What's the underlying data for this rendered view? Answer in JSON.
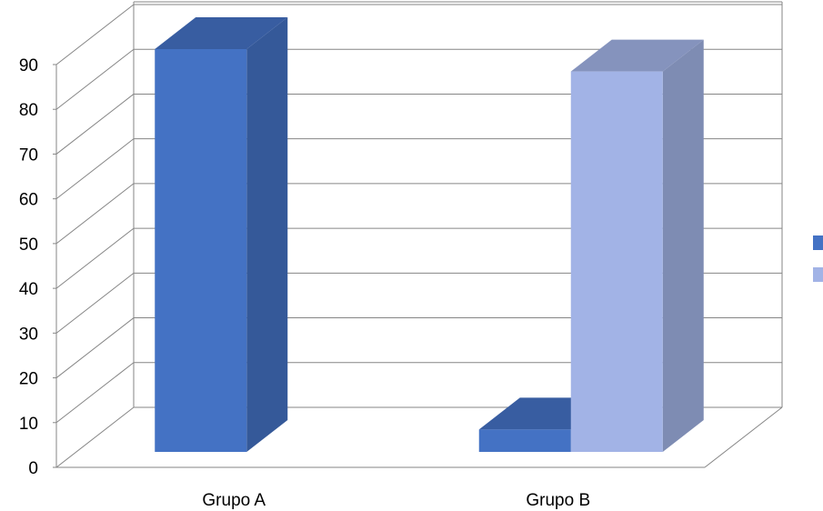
{
  "chart_data": {
    "type": "bar",
    "style": "3d-clustered-column",
    "title": "",
    "xlabel": "",
    "ylabel": "",
    "categories": [
      "Grupo A",
      "Grupo B"
    ],
    "series": [
      {
        "values": [
          90,
          5
        ],
        "color": "#4472c4"
      },
      {
        "values": [
          0,
          85
        ],
        "color": "#a2b3e6"
      }
    ],
    "ylim": [
      0,
      90
    ],
    "yticks": [
      0,
      10,
      20,
      30,
      40,
      50,
      60,
      70,
      80,
      90
    ],
    "grid": true,
    "legend_position": "right"
  }
}
